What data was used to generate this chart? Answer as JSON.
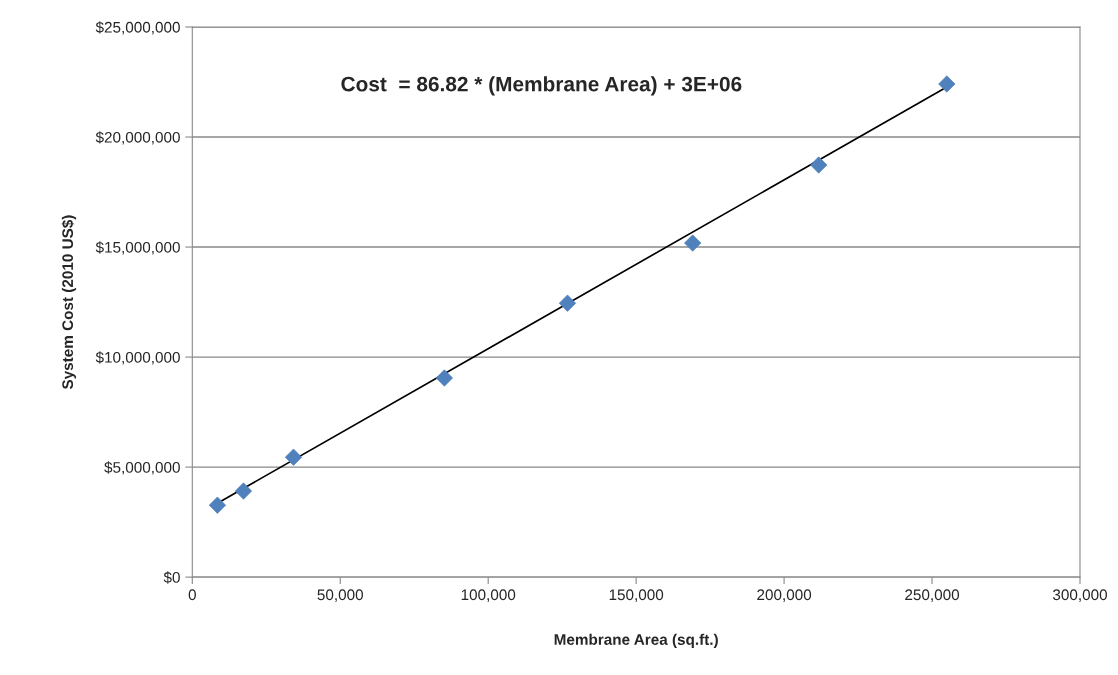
{
  "chart_data": {
    "type": "scatter",
    "xlabel": "Membrane Area (sq.ft.)",
    "ylabel": "System Cost (2010 US$)",
    "series": [
      {
        "color": "#4f81bd",
        "marker": "diamond",
        "x": [
          8500,
          17300,
          34200,
          85200,
          126800,
          169100,
          211700,
          255000
        ],
        "values": [
          3270000,
          3910000,
          5450000,
          9050000,
          12450000,
          15180000,
          18730000,
          22410000
        ]
      },
      {
        "type": "line",
        "color": "#000000",
        "marker": "none",
        "line_style": "solid",
        "x": [
          8500,
          255000
        ],
        "values": [
          3360000,
          22270000
        ]
      }
    ],
    "annotations": [
      "Cost  = 86.82 * (Membrane Area) + 3E+06"
    ],
    "xlim": [
      0,
      300000
    ],
    "xticks": [
      {
        "value": 0,
        "label": "0"
      },
      {
        "value": 50000,
        "label": "50,000"
      },
      {
        "value": 100000,
        "label": "100,000"
      },
      {
        "value": 150000,
        "label": "150,000"
      },
      {
        "value": 200000,
        "label": "200,000"
      },
      {
        "value": 250000,
        "label": "250,000"
      },
      {
        "value": 300000,
        "label": "300,000"
      }
    ],
    "ylim": [
      0,
      25000000
    ],
    "yticks": [
      {
        "value": 0,
        "label": "$0"
      },
      {
        "value": 5000000,
        "label": "$5,000,000"
      },
      {
        "value": 10000000,
        "label": "$10,000,000"
      },
      {
        "value": 15000000,
        "label": "$15,000,000"
      },
      {
        "value": 20000000,
        "label": "$20,000,000"
      },
      {
        "value": 25000000,
        "label": "$25,000,000"
      }
    ],
    "grid": "y",
    "legend": false
  }
}
